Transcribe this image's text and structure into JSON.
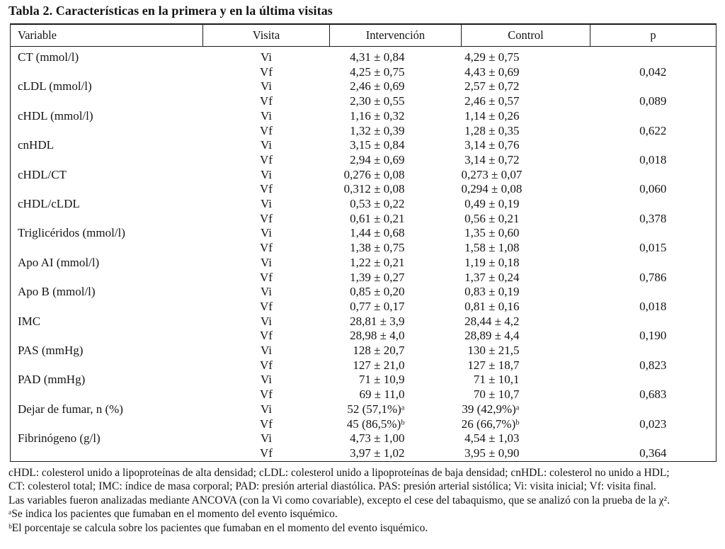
{
  "page": {
    "background": "#ffffff",
    "text_color": "#141414",
    "border_color": "#1b1b1b"
  },
  "title": "Tabla 2. Características en la primera y en la última visitas",
  "table": {
    "columns": [
      "Variable",
      "Visita",
      "Intervención",
      "Control",
      "p"
    ],
    "visit_labels": {
      "initial": "Vi",
      "final": "Vf"
    },
    "rows": [
      {
        "variable": "CT (mmol/l)",
        "vi_intervencion": "4,31 ± 0,84",
        "vi_control": "4,29 ± 0,75",
        "vf_intervencion": "4,25 ± 0,75",
        "vf_control": "4,43 ± 0,69",
        "p": "0,042"
      },
      {
        "variable": "cLDL (mmol/l)",
        "vi_intervencion": "2,46 ± 0,69",
        "vi_control": "2,57 ± 0,72",
        "vf_intervencion": "2,30 ± 0,55",
        "vf_control": "2,46 ± 0,57",
        "p": "0,089"
      },
      {
        "variable": "cHDL (mmol/l)",
        "vi_intervencion": "1,16 ± 0,32",
        "vi_control": "1,14 ± 0,26",
        "vf_intervencion": "1,32 ± 0,39",
        "vf_control": "1,28 ± 0,35",
        "p": "0,622"
      },
      {
        "variable": "cnHDL",
        "vi_intervencion": "3,15 ± 0,84",
        "vi_control": "3,14 ± 0,76",
        "vf_intervencion": "2,94 ± 0,69",
        "vf_control": "3,14 ± 0,72",
        "p": "0,018"
      },
      {
        "variable": "cHDL/CT",
        "vi_intervencion": "0,276 ± 0,08",
        "vi_control": "0,273 ± 0,07",
        "vf_intervencion": "0,312 ± 0,08",
        "vf_control": "0,294 ± 0,08",
        "p": "0,060"
      },
      {
        "variable": "cHDL/cLDL",
        "vi_intervencion": "0,53 ± 0,22",
        "vi_control": "0,49 ± 0,19",
        "vf_intervencion": "0,61 ± 0,21",
        "vf_control": "0,56 ± 0,21",
        "p": "0,378"
      },
      {
        "variable": "Triglicéridos (mmol/l)",
        "vi_intervencion": "1,44 ± 0,68",
        "vi_control": "1,35 ± 0,60",
        "vf_intervencion": "1,38 ± 0,75",
        "vf_control": "1,58 ± 1,08",
        "p": "0,015"
      },
      {
        "variable": "Apo AI (mmol/l)",
        "vi_intervencion": "1,22 ± 0,21",
        "vi_control": "1,19 ± 0,18",
        "vf_intervencion": "1,39 ± 0,27",
        "vf_control": "1,37 ± 0,24",
        "p": "0,786"
      },
      {
        "variable": "Apo B (mmol/l)",
        "vi_intervencion": "0,85 ± 0,20",
        "vi_control": "0,83 ± 0,19",
        "vf_intervencion": "0,77 ± 0,17",
        "vf_control": "0,81 ± 0,16",
        "p": "0,018"
      },
      {
        "variable": "IMC",
        "vi_intervencion": "28,81 ± 3,9",
        "vi_control": "28,44 ± 4,2",
        "vf_intervencion": "28,98 ± 4,0",
        "vf_control": "28,89 ± 4,4",
        "p": "0,190"
      },
      {
        "variable": "PAS (mmHg)",
        "vi_intervencion": "128 ± 20,7",
        "vi_control": "130 ± 21,5",
        "vf_intervencion": "127 ± 21,0",
        "vf_control": "127 ± 18,7",
        "p": "0,823"
      },
      {
        "variable": "PAD (mmHg)",
        "vi_intervencion": "71 ± 10,9",
        "vi_control": "71 ± 10,1",
        "vf_intervencion": "69 ± 11,0",
        "vf_control": "70 ± 10,7",
        "p": "0,683"
      },
      {
        "variable": "Dejar de fumar, n (%)",
        "vi_intervencion": "52 (57,1%)ᵃ",
        "vi_control": "39 (42,9%)ᵃ",
        "vf_intervencion": "45 (86,5%)ᵇ",
        "vf_control": "26 (66,7%)ᵇ",
        "p": "0,023"
      },
      {
        "variable": "Fibrinógeno (g/l)",
        "vi_intervencion": "4,73 ± 1,00",
        "vi_control": "4,54 ± 1,03",
        "vf_intervencion": "3,97 ± 1,02",
        "vf_control": "3,95 ± 0,90",
        "p": "0,364"
      }
    ]
  },
  "footnotes": [
    "cHDL: colesterol unido a lipoproteínas de alta densidad; cLDL: colesterol unido a lipoproteínas de baja densidad; cnHDL: colesterol no unido a HDL;",
    "CT: colesterol total; IMC: índice de masa corporal; PAD: presión arterial diastólica. PAS: presión arterial sistólica; Vi: visita inicial; Vf: visita final.",
    "Las variables fueron analizadas mediante ANCOVA (con la Vi como covariable), excepto el cese del tabaquismo, que se analizó con la prueba de la χ².",
    "ᵃSe indica los pacientes que fumaban en el momento del evento isquémico.",
    "ᵇEl porcentaje se calcula sobre los pacientes que fumaban en el momento del evento isquémico."
  ]
}
